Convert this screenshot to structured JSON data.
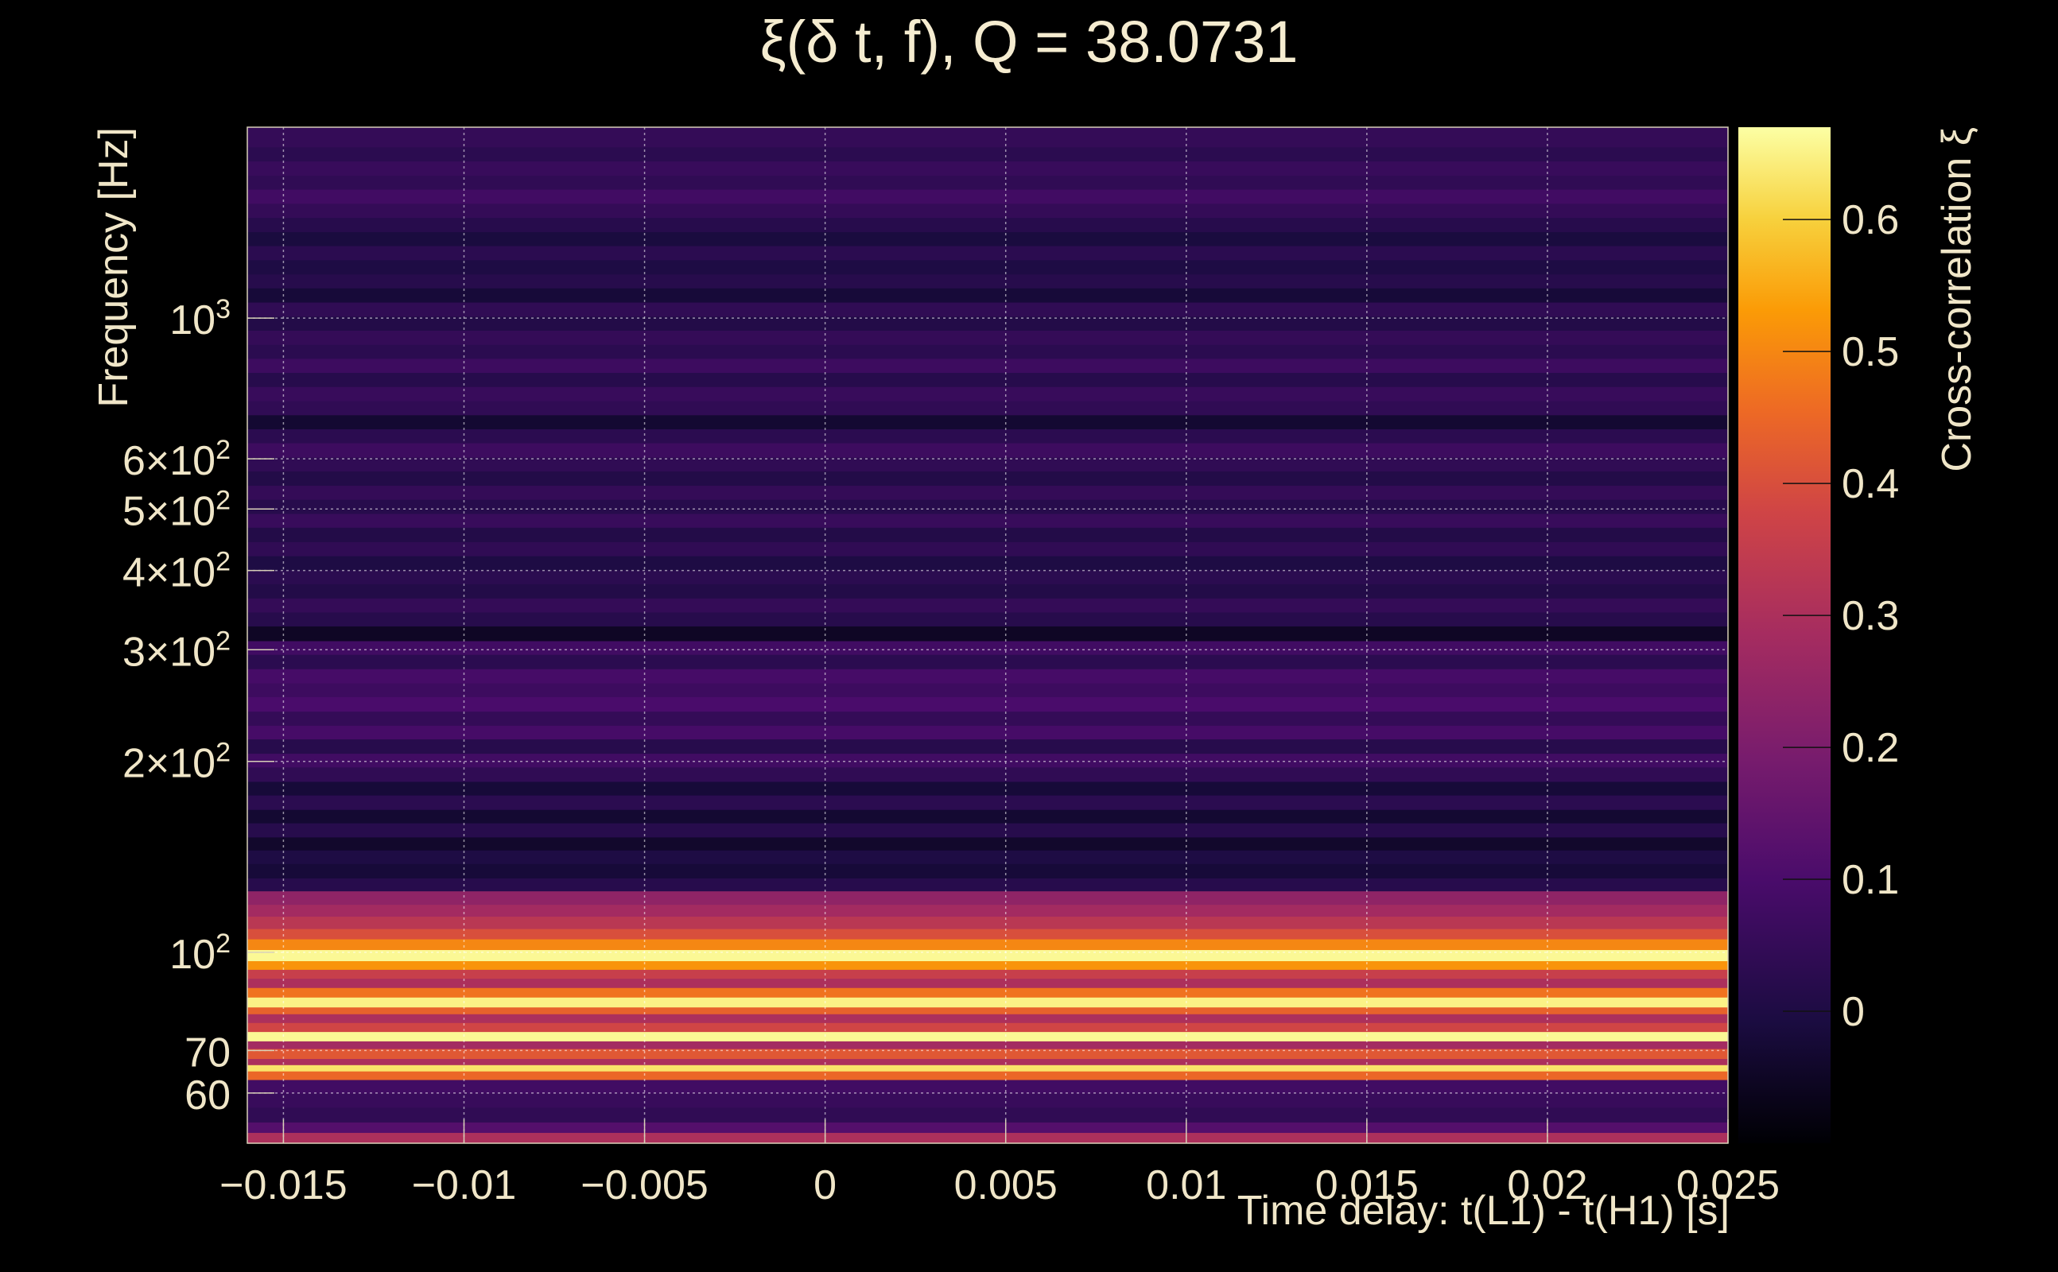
{
  "title": "ξ(δ t, f), Q = 38.0731",
  "chart_data": {
    "type": "heatmap",
    "title": "ξ(δ t, f), Q = 38.0731",
    "xlabel": "Time delay: t(L1) - t(H1) [s]",
    "ylabel": "Frequency [Hz]",
    "colorbar_label": "Cross-correlation ξ",
    "xlim": [
      -0.016,
      0.025
    ],
    "ylim": [
      50,
      2000
    ],
    "yscale": "log",
    "x_ticks": [
      -0.015,
      -0.01,
      -0.005,
      0,
      0.005,
      0.01,
      0.015,
      0.02,
      0.025
    ],
    "x_tick_labels": [
      "−0.015",
      "−0.01",
      "−0.005",
      "0",
      "0.005",
      "0.01",
      "0.015",
      "0.02",
      "0.025"
    ],
    "y_ticks": [
      60,
      70,
      100,
      200,
      300,
      400,
      500,
      600,
      1000
    ],
    "y_tick_labels": [
      {
        "base": "60",
        "sup": ""
      },
      {
        "base": "70",
        "sup": ""
      },
      {
        "base": "10",
        "sup": "2"
      },
      {
        "base": "2×10",
        "sup": "2"
      },
      {
        "base": "3×10",
        "sup": "2"
      },
      {
        "base": "4×10",
        "sup": "2"
      },
      {
        "base": "5×10",
        "sup": "2"
      },
      {
        "base": "6×10",
        "sup": "2"
      },
      {
        "base": "10",
        "sup": "3"
      }
    ],
    "colorbar_range": [
      -0.1,
      0.67
    ],
    "colorbar_ticks": [
      0,
      0.1,
      0.2,
      0.3,
      0.4,
      0.5,
      0.6
    ],
    "colorbar_tick_labels": [
      "0",
      "0.1",
      "0.2",
      "0.3",
      "0.4",
      "0.5",
      "0.6"
    ],
    "colormap": "inferno",
    "grid": true,
    "bands": [
      {
        "f_low": 50,
        "f_high": 52,
        "value": 0.3
      },
      {
        "f_low": 52,
        "f_high": 54,
        "value": 0.12
      },
      {
        "f_low": 54,
        "f_high": 57,
        "value": 0.04
      },
      {
        "f_low": 57,
        "f_high": 60,
        "value": 0.06
      },
      {
        "f_low": 60,
        "f_high": 63,
        "value": 0.08
      },
      {
        "f_low": 63,
        "f_high": 65,
        "value": 0.45
      },
      {
        "f_low": 65,
        "f_high": 66.5,
        "value": 0.63
      },
      {
        "f_low": 66.5,
        "f_high": 68,
        "value": 0.3
      },
      {
        "f_low": 68,
        "f_high": 70.5,
        "value": 0.42
      },
      {
        "f_low": 70.5,
        "f_high": 72.5,
        "value": 0.28
      },
      {
        "f_low": 72.5,
        "f_high": 75,
        "value": 0.66
      },
      {
        "f_low": 75,
        "f_high": 77.5,
        "value": 0.38
      },
      {
        "f_low": 77.5,
        "f_high": 80,
        "value": 0.3
      },
      {
        "f_low": 80,
        "f_high": 82,
        "value": 0.44
      },
      {
        "f_low": 82,
        "f_high": 85,
        "value": 0.65
      },
      {
        "f_low": 85,
        "f_high": 88,
        "value": 0.47
      },
      {
        "f_low": 88,
        "f_high": 91,
        "value": 0.3
      },
      {
        "f_low": 91,
        "f_high": 94,
        "value": 0.36
      },
      {
        "f_low": 94,
        "f_high": 97,
        "value": 0.52
      },
      {
        "f_low": 97,
        "f_high": 101,
        "value": 0.66
      },
      {
        "f_low": 101,
        "f_high": 105,
        "value": 0.5
      },
      {
        "f_low": 105,
        "f_high": 109,
        "value": 0.4
      },
      {
        "f_low": 109,
        "f_high": 114,
        "value": 0.33
      },
      {
        "f_low": 114,
        "f_high": 119,
        "value": 0.28
      },
      {
        "f_low": 119,
        "f_high": 125,
        "value": 0.24
      },
      {
        "f_low": 125,
        "f_high": 131,
        "value": 0.02
      },
      {
        "f_low": 131,
        "f_high": 138,
        "value": -0.02
      },
      {
        "f_low": 138,
        "f_high": 145,
        "value": 0.0
      },
      {
        "f_low": 145,
        "f_high": 152,
        "value": -0.04
      },
      {
        "f_low": 152,
        "f_high": 160,
        "value": 0.02
      },
      {
        "f_low": 160,
        "f_high": 168,
        "value": -0.03
      },
      {
        "f_low": 168,
        "f_high": 177,
        "value": 0.03
      },
      {
        "f_low": 177,
        "f_high": 186,
        "value": -0.02
      },
      {
        "f_low": 186,
        "f_high": 196,
        "value": 0.04
      },
      {
        "f_low": 196,
        "f_high": 206,
        "value": 0.08
      },
      {
        "f_low": 206,
        "f_high": 217,
        "value": 0.02
      },
      {
        "f_low": 217,
        "f_high": 228,
        "value": 0.09
      },
      {
        "f_low": 228,
        "f_high": 240,
        "value": 0.05
      },
      {
        "f_low": 240,
        "f_high": 253,
        "value": 0.1
      },
      {
        "f_low": 253,
        "f_high": 266,
        "value": 0.07
      },
      {
        "f_low": 266,
        "f_high": 280,
        "value": 0.09
      },
      {
        "f_low": 280,
        "f_high": 295,
        "value": 0.03
      },
      {
        "f_low": 295,
        "f_high": 310,
        "value": 0.08
      },
      {
        "f_low": 310,
        "f_high": 327,
        "value": -0.05
      },
      {
        "f_low": 327,
        "f_high": 344,
        "value": 0.02
      },
      {
        "f_low": 344,
        "f_high": 362,
        "value": 0.05
      },
      {
        "f_low": 362,
        "f_high": 381,
        "value": 0.01
      },
      {
        "f_low": 381,
        "f_high": 401,
        "value": 0.03
      },
      {
        "f_low": 401,
        "f_high": 422,
        "value": 0.0
      },
      {
        "f_low": 422,
        "f_high": 444,
        "value": 0.04
      },
      {
        "f_low": 444,
        "f_high": 468,
        "value": 0.01
      },
      {
        "f_low": 468,
        "f_high": 492,
        "value": 0.06
      },
      {
        "f_low": 492,
        "f_high": 518,
        "value": 0.02
      },
      {
        "f_low": 518,
        "f_high": 545,
        "value": 0.05
      },
      {
        "f_low": 545,
        "f_high": 574,
        "value": 0.01
      },
      {
        "f_low": 574,
        "f_high": 604,
        "value": 0.04
      },
      {
        "f_low": 604,
        "f_high": 636,
        "value": 0.07
      },
      {
        "f_low": 636,
        "f_high": 669,
        "value": 0.03
      },
      {
        "f_low": 669,
        "f_high": 704,
        "value": -0.03
      },
      {
        "f_low": 704,
        "f_high": 741,
        "value": 0.04
      },
      {
        "f_low": 741,
        "f_high": 780,
        "value": 0.06
      },
      {
        "f_low": 780,
        "f_high": 821,
        "value": 0.02
      },
      {
        "f_low": 821,
        "f_high": 864,
        "value": 0.07
      },
      {
        "f_low": 864,
        "f_high": 909,
        "value": 0.03
      },
      {
        "f_low": 909,
        "f_high": 957,
        "value": 0.05
      },
      {
        "f_low": 957,
        "f_high": 1007,
        "value": 0.01
      },
      {
        "f_low": 1007,
        "f_high": 1060,
        "value": 0.04
      },
      {
        "f_low": 1060,
        "f_high": 1116,
        "value": -0.02
      },
      {
        "f_low": 1116,
        "f_high": 1174,
        "value": 0.02
      },
      {
        "f_low": 1174,
        "f_high": 1236,
        "value": 0.0
      },
      {
        "f_low": 1236,
        "f_high": 1301,
        "value": 0.03
      },
      {
        "f_low": 1301,
        "f_high": 1369,
        "value": -0.01
      },
      {
        "f_low": 1369,
        "f_high": 1441,
        "value": 0.02
      },
      {
        "f_low": 1441,
        "f_high": 1517,
        "value": 0.05
      },
      {
        "f_low": 1517,
        "f_high": 1597,
        "value": 0.08
      },
      {
        "f_low": 1597,
        "f_high": 1680,
        "value": 0.04
      },
      {
        "f_low": 1680,
        "f_high": 1769,
        "value": 0.06
      },
      {
        "f_low": 1769,
        "f_high": 1862,
        "value": 0.03
      },
      {
        "f_low": 1862,
        "f_high": 2000,
        "value": 0.05
      }
    ]
  }
}
